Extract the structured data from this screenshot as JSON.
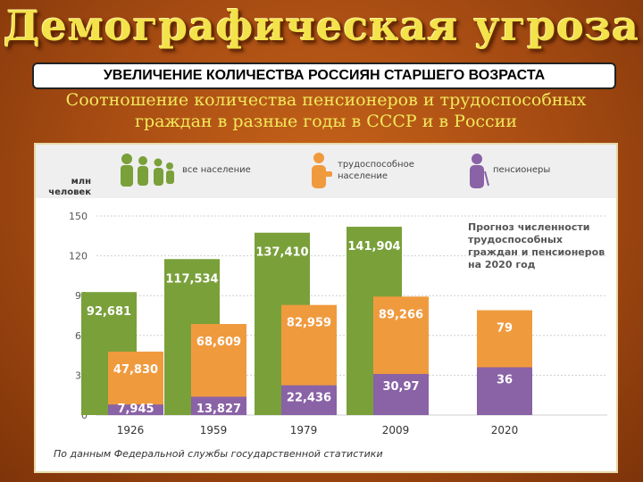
{
  "page": {
    "title": "Демографическая угроза",
    "subtitle": "УВЕЛИЧЕНИЕ КОЛИЧЕСТВА РОССИЯН СТАРШЕГО ВОЗРАСТА",
    "heading_line1": "Соотношение количества пенсионеров и трудоспособных",
    "heading_line2": "граждан в разные годы в СССР и в России"
  },
  "chart_data": {
    "type": "bar",
    "ylabel_line1": "млн",
    "ylabel_line2": "человек",
    "ylim": [
      0,
      150
    ],
    "yticks": [
      "0",
      "30",
      "60",
      "90",
      "120",
      "150"
    ],
    "categories": [
      "1926",
      "1959",
      "1979",
      "2009",
      "2020"
    ],
    "series": [
      {
        "name": "все население",
        "values": [
          92.681,
          117.534,
          137.41,
          141.904,
          null
        ],
        "labels": [
          "92,681",
          "117,534",
          "137,410",
          "141,904",
          ""
        ],
        "color": "#7aa03a"
      },
      {
        "name": "трудоспособное население",
        "values": [
          47.83,
          68.609,
          82.959,
          89.266,
          79
        ],
        "labels": [
          "47,830",
          "68,609",
          "82,959",
          "89,266",
          "79"
        ],
        "color": "#f09a3e"
      },
      {
        "name": "пенсионеры",
        "values": [
          7.945,
          13.827,
          22.436,
          30.97,
          36
        ],
        "labels": [
          "7,945",
          "13,827",
          "22,436",
          "30,97",
          "36"
        ],
        "color": "#8a62a6"
      }
    ],
    "legend_label_2_line1": "трудоспособное",
    "legend_label_2_line2": "население",
    "note_line1": "Прогноз численности",
    "note_line2": "трудоспособных",
    "note_line3": "граждан и пенсионеров",
    "note_line4_prefix": "на",
    "note_line4_year": "2020",
    "note_line4_suffix": "год",
    "source": "По данным Федеральной службы государственной статистики"
  }
}
